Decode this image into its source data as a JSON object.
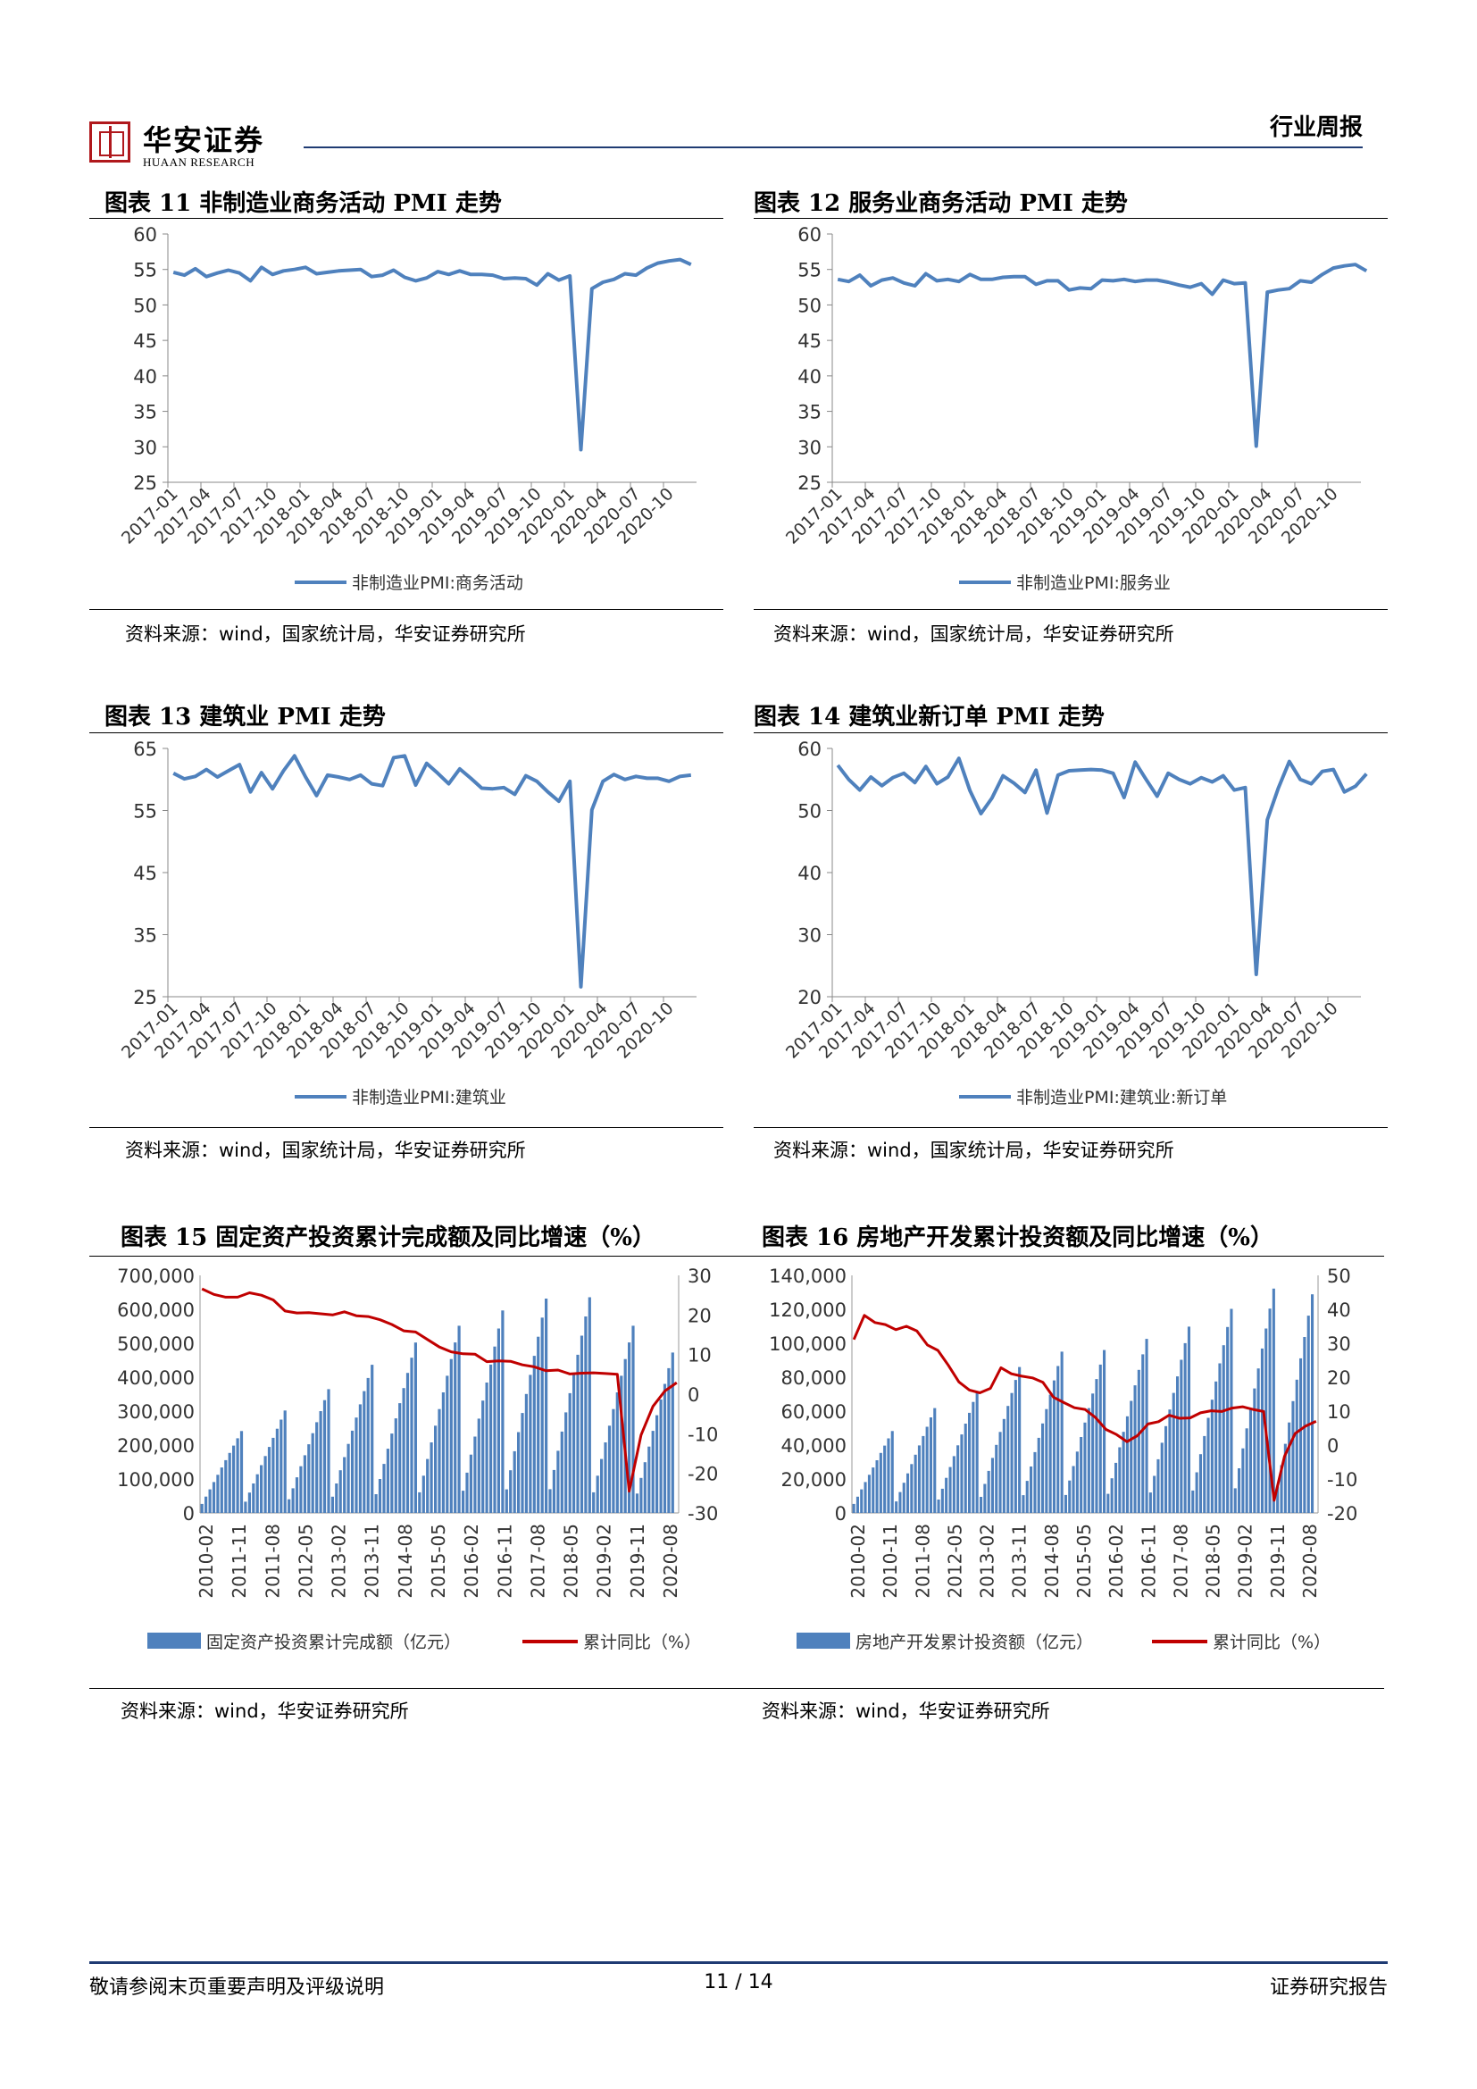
{
  "header": {
    "brand_cn": "华安证券",
    "brand_en": "HUAAN RESEARCH",
    "report_type": "行业周报",
    "brand_color": "#b0181c",
    "rule_color": "#1f3b73"
  },
  "figures": [
    {
      "title": "图表 11  非制造业商务活动 PMI 走势",
      "source": "资料来源：wind，国家统计局，华安证券研究所"
    },
    {
      "title": "图表 12  服务业商务活动 PMI 走势",
      "source": "资料来源：wind，国家统计局，华安证券研究所"
    },
    {
      "title": "图表 13  建筑业 PMI 走势",
      "source": "资料来源：wind，国家统计局，华安证券研究所"
    },
    {
      "title": "图表 14  建筑业新订单 PMI 走势",
      "source": "资料来源：wind，国家统计局，华安证券研究所"
    },
    {
      "title": "图表 15  固定资产投资累计完成额及同比增速（%）",
      "source": "资料来源：wind，华安证券研究所"
    },
    {
      "title": "图表 16  房地产开发累计投资额及同比增速（%）",
      "source": "资料来源：wind，华安证券研究所"
    }
  ],
  "chart_data": [
    {
      "type": "line",
      "x_tick_labels": [
        "2017-01",
        "2017-04",
        "2017-07",
        "2017-10",
        "2018-01",
        "2018-04",
        "2018-07",
        "2018-10",
        "2019-01",
        "2019-04",
        "2019-07",
        "2019-10",
        "2020-01",
        "2020-04",
        "2020-07",
        "2020-10"
      ],
      "x_start": "2017-01",
      "ylim": [
        25,
        60
      ],
      "yticks": [
        25,
        30,
        35,
        40,
        45,
        50,
        55,
        60
      ],
      "color": "#4f81bd",
      "series": [
        {
          "name": "非制造业PMI:商务活动",
          "values": [
            54.6,
            54.2,
            55.1,
            54.0,
            54.5,
            54.9,
            54.5,
            53.4,
            55.3,
            54.3,
            54.8,
            55.0,
            55.3,
            54.4,
            54.6,
            54.8,
            54.9,
            55.0,
            54.0,
            54.2,
            54.9,
            53.9,
            53.4,
            53.8,
            54.7,
            54.3,
            54.8,
            54.3,
            54.3,
            54.2,
            53.7,
            53.8,
            53.7,
            52.8,
            54.4,
            53.5,
            54.1,
            29.6,
            52.3,
            53.2,
            53.6,
            54.4,
            54.2,
            55.2,
            55.9,
            56.2,
            56.4,
            55.7
          ]
        }
      ]
    },
    {
      "type": "line",
      "x_tick_labels": [
        "2017-01",
        "2017-04",
        "2017-07",
        "2017-10",
        "2018-01",
        "2018-04",
        "2018-07",
        "2018-10",
        "2019-01",
        "2019-04",
        "2019-07",
        "2019-10",
        "2020-01",
        "2020-04",
        "2020-07",
        "2020-10"
      ],
      "x_start": "2017-01",
      "ylim": [
        25,
        60
      ],
      "yticks": [
        25,
        30,
        35,
        40,
        45,
        50,
        55,
        60
      ],
      "color": "#4f81bd",
      "series": [
        {
          "name": "非制造业PMI:服务业",
          "values": [
            53.6,
            53.3,
            54.2,
            52.7,
            53.5,
            53.8,
            53.1,
            52.7,
            54.4,
            53.4,
            53.6,
            53.3,
            54.3,
            53.6,
            53.6,
            53.9,
            54.0,
            54.0,
            52.9,
            53.4,
            53.4,
            52.1,
            52.4,
            52.3,
            53.5,
            53.4,
            53.6,
            53.3,
            53.5,
            53.5,
            53.2,
            52.8,
            52.5,
            53.0,
            51.5,
            53.5,
            53.0,
            53.1,
            30.1,
            51.8,
            52.1,
            52.3,
            53.4,
            53.2,
            54.3,
            55.2,
            55.5,
            55.7,
            54.8
          ]
        }
      ]
    },
    {
      "type": "line",
      "x_tick_labels": [
        "2017-01",
        "2017-04",
        "2017-07",
        "2017-10",
        "2018-01",
        "2018-04",
        "2018-07",
        "2018-10",
        "2019-01",
        "2019-04",
        "2019-07",
        "2019-10",
        "2020-01",
        "2020-04",
        "2020-07",
        "2020-10"
      ],
      "x_start": "2017-01",
      "ylim": [
        25,
        65
      ],
      "yticks": [
        25,
        35,
        45,
        55,
        65
      ],
      "color": "#4f81bd",
      "series": [
        {
          "name": "非制造业PMI:建筑业",
          "values": [
            61.0,
            60.1,
            60.5,
            61.6,
            60.4,
            61.4,
            62.4,
            58.0,
            61.1,
            58.5,
            61.4,
            63.8,
            60.4,
            57.4,
            60.7,
            60.4,
            60.0,
            60.7,
            59.3,
            59.0,
            63.5,
            63.8,
            59.1,
            62.6,
            61.0,
            59.3,
            61.7,
            60.2,
            58.6,
            58.5,
            58.7,
            57.6,
            60.6,
            59.7,
            58.0,
            56.5,
            59.7,
            26.6,
            55.1,
            59.7,
            60.8,
            60.0,
            60.5,
            60.2,
            60.2,
            59.7,
            60.5,
            60.7
          ]
        }
      ]
    },
    {
      "type": "line",
      "x_tick_labels": [
        "2017-01",
        "2017-04",
        "2017-07",
        "2017-10",
        "2018-01",
        "2018-04",
        "2018-07",
        "2018-10",
        "2019-01",
        "2019-04",
        "2019-07",
        "2019-10",
        "2020-01",
        "2020-04",
        "2020-07",
        "2020-10"
      ],
      "x_start": "2017-01",
      "ylim": [
        20,
        60
      ],
      "yticks": [
        20,
        30,
        40,
        50,
        60
      ],
      "color": "#4f81bd",
      "series": [
        {
          "name": "非制造业PMI:建筑业:新订单",
          "values": [
            57.3,
            55.0,
            53.3,
            55.4,
            54.0,
            55.3,
            56.0,
            54.5,
            57.1,
            54.3,
            55.4,
            58.4,
            53.2,
            49.5,
            52.0,
            55.6,
            54.4,
            52.9,
            56.5,
            49.6,
            55.7,
            56.4,
            56.5,
            56.6,
            56.5,
            56.0,
            52.1,
            57.8,
            55.0,
            52.3,
            56.0,
            55.0,
            54.3,
            55.3,
            54.6,
            55.6,
            53.3,
            53.7,
            23.6,
            48.5,
            53.6,
            57.9,
            55.0,
            54.3,
            56.3,
            56.6,
            53.0,
            53.9,
            55.9
          ]
        }
      ]
    },
    {
      "type": "bar+line",
      "x_tick_labels": [
        "2010-02",
        "2011-11",
        "2011-08",
        "2012-05",
        "2013-02",
        "2013-11",
        "2014-08",
        "2015-05",
        "2016-02",
        "2016-11",
        "2017-08",
        "2018-05",
        "2019-02",
        "2019-11",
        "2020-08"
      ],
      "ylim": [
        0,
        700000
      ],
      "yticks": [
        0,
        100000,
        200000,
        300000,
        400000,
        500000,
        600000,
        700000
      ],
      "y2lim": [
        -30,
        30
      ],
      "y2ticks": [
        -30,
        -20,
        -10,
        0,
        10,
        20,
        30
      ],
      "annual_dec_values": [
        241415,
        301933,
        364835,
        436528,
        502005,
        551590,
        596501,
        631684,
        635636,
        551478,
        518907
      ],
      "growth_values": [
        26.6,
        25.2,
        24.5,
        24.5,
        25.6,
        25.0,
        23.8,
        21.0,
        20.5,
        20.6,
        20.3,
        20.0,
        20.8,
        19.8,
        19.6,
        18.8,
        17.6,
        16.0,
        15.7,
        13.8,
        11.9,
        10.7,
        10.2,
        10.1,
        8.2,
        8.4,
        8.3,
        7.4,
        6.9,
        5.9,
        6.1,
        5.1,
        5.3,
        5.4,
        5.2,
        5.0,
        -24.5,
        -10.3,
        -3.1,
        0.8,
        2.9
      ],
      "series": [
        {
          "name": "固定资产投资累计完成额（亿元）",
          "color": "#4f81bd"
        },
        {
          "name": "累计同比（%）",
          "color": "#c00000"
        }
      ]
    },
    {
      "type": "bar+line",
      "x_tick_labels": [
        "2010-02",
        "2010-11",
        "2011-08",
        "2012-05",
        "2013-02",
        "2013-11",
        "2014-08",
        "2015-05",
        "2016-02",
        "2016-11",
        "2017-08",
        "2018-05",
        "2019-02",
        "2019-11",
        "2020-08"
      ],
      "ylim": [
        0,
        140000
      ],
      "yticks": [
        0,
        20000,
        40000,
        60000,
        80000,
        100000,
        120000,
        140000
      ],
      "y2lim": [
        -20,
        50
      ],
      "y2ticks": [
        -20,
        -10,
        0,
        10,
        20,
        30,
        40,
        50
      ],
      "annual_dec_values": [
        48259,
        61797,
        71804,
        86013,
        95036,
        95979,
        102581,
        109799,
        120264,
        132194,
        141443
      ],
      "growth_values": [
        31.1,
        38.2,
        36.1,
        35.5,
        34.0,
        35.0,
        33.6,
        29.5,
        27.9,
        23.5,
        18.6,
        16.2,
        15.4,
        16.7,
        22.8,
        21.0,
        20.3,
        19.8,
        18.5,
        14.1,
        12.5,
        11.0,
        10.5,
        8.1,
        4.6,
        3.1,
        1.0,
        2.8,
        6.2,
        6.9,
        8.8,
        7.9,
        8.0,
        9.5,
        10.1,
        9.9,
        10.9,
        11.3,
        10.5,
        9.9,
        -16.3,
        -3.3,
        3.4,
        5.6,
        7.0
      ],
      "series": [
        {
          "name": "房地产开发累计投资额（亿元）",
          "color": "#4f81bd"
        },
        {
          "name": "累计同比（%）",
          "color": "#c00000"
        }
      ]
    }
  ],
  "footer": {
    "disclaimer": "敬请参阅末页重要声明及评级说明",
    "page": "11 / 14",
    "doc_type": "证券研究报告"
  }
}
